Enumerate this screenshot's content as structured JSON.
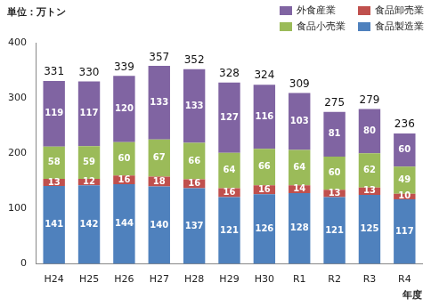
{
  "chart_data": {
    "type": "bar",
    "stacked": true,
    "data_labels": true,
    "grid": false,
    "legend": "top-right",
    "ylabel": "単位：万トン",
    "xlabel": "年度",
    "categories": [
      "H24",
      "H25",
      "H26",
      "H27",
      "H28",
      "H29",
      "H30",
      "R1",
      "R2",
      "R3",
      "R4"
    ],
    "series": [
      {
        "name": "食品製造業",
        "color": "#4f81bd",
        "values": [
          141,
          142,
          144,
          140,
          137,
          121,
          126,
          128,
          121,
          125,
          117
        ]
      },
      {
        "name": "食品卸売業",
        "color": "#c0504d",
        "values": [
          13,
          12,
          16,
          18,
          16,
          16,
          16,
          14,
          13,
          13,
          10
        ]
      },
      {
        "name": "食品小売業",
        "color": "#9bbb59",
        "values": [
          58,
          59,
          60,
          67,
          66,
          64,
          66,
          64,
          60,
          62,
          49
        ]
      },
      {
        "name": "外食産業",
        "color": "#8064a2",
        "values": [
          119,
          117,
          120,
          133,
          133,
          127,
          116,
          103,
          81,
          80,
          60
        ]
      }
    ],
    "totals": [
      331,
      330,
      339,
      357,
      352,
      328,
      324,
      309,
      275,
      279,
      236
    ],
    "ylim": [
      0,
      400
    ],
    "yticks": [
      0,
      100,
      200,
      300,
      400
    ]
  }
}
